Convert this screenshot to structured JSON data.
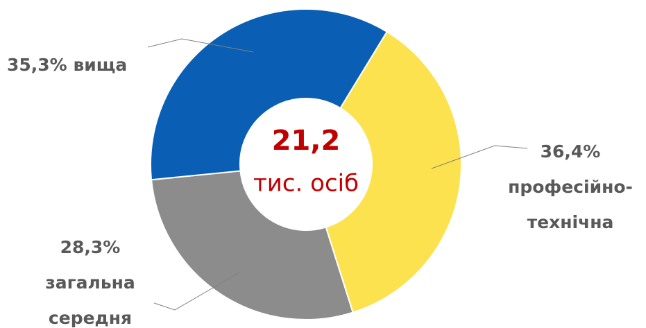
{
  "chart_data": {
    "type": "donut",
    "categories": [
      [
        "вища"
      ],
      [
        "професійно-",
        "технічна"
      ],
      [
        "загальна",
        "середня"
      ]
    ],
    "values": [
      35.3,
      36.4,
      28.3
    ],
    "value_labels": [
      "35,3%",
      "36,4%",
      "28,3%"
    ],
    "colors": [
      "#0a5fb4",
      "#fde24f",
      "#8c8c8c"
    ],
    "center_value": "21,2",
    "center_label": "тис. осіб"
  }
}
